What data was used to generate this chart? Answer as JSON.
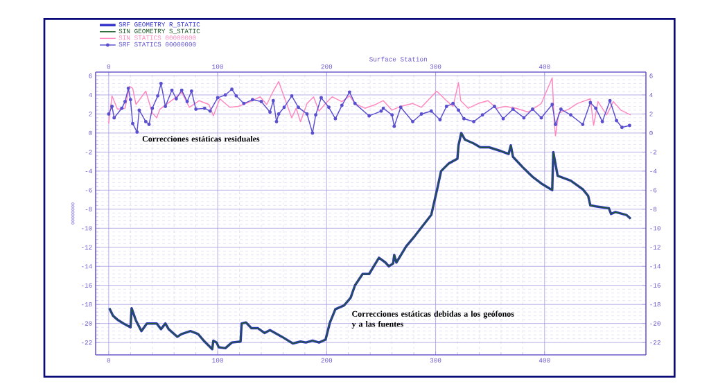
{
  "chart_data": {
    "type": "line",
    "x2label": "Surface Station",
    "ylabel": "00000000",
    "xlim": [
      -12,
      493
    ],
    "xticks": [
      0,
      100,
      200,
      300,
      400
    ],
    "x2lim": [
      -12,
      493
    ],
    "x2ticks": [
      0,
      100,
      200,
      300,
      400
    ],
    "ylim": [
      -23.3,
      6.4
    ],
    "yticks": [
      -22,
      -20,
      -18,
      -16,
      -14,
      -12,
      -10,
      -8,
      -6,
      -4,
      -2,
      0,
      2,
      4,
      6
    ],
    "y2lim": [
      -23.3,
      6.4
    ],
    "y2ticks": [
      -22,
      -20,
      -18,
      -16,
      -14,
      -12,
      -10,
      -8,
      -6,
      -4,
      -2,
      0,
      2,
      4,
      6
    ],
    "grid": true,
    "legend": "top left",
    "annotations": [
      "Correcciones estáticas residuales",
      "Correcciones estáticas debidas a los geófonos y a las fuentes"
    ],
    "series": [
      {
        "name": "SRF GEOMETRY R_STATIC",
        "color": "#3333cc",
        "marker": "none",
        "x": [
          0.6,
          4,
          8,
          13.6,
          20,
          21,
          25,
          30,
          35,
          44,
          48,
          52,
          55,
          63,
          67,
          75,
          82,
          88,
          95,
          96,
          99,
          101,
          107,
          113,
          121,
          122,
          126,
          131,
          137,
          143,
          148,
          159,
          169,
          176,
          181,
          187,
          193,
          199,
          203,
          208,
          216,
          222,
          226,
          233,
          239,
          248,
          254,
          257,
          261,
          262,
          264,
          273,
          281,
          296,
          302,
          305,
          312,
          320,
          321,
          323.5,
          327,
          335,
          341,
          349,
          360,
          367,
          369,
          371,
          380,
          389,
          397,
          407,
          408,
          412,
          424,
          435,
          440,
          442,
          447,
          459,
          461,
          465,
          475,
          479
        ],
        "values": [
          -18.4,
          -19.2,
          -19.6,
          -20,
          -20.4,
          -18.4,
          -19.7,
          -20.8,
          -20,
          -20,
          -20.6,
          -20,
          -20.6,
          -21.4,
          -21.1,
          -20.8,
          -21.1,
          -21.9,
          -22.7,
          -21.8,
          -22,
          -22.5,
          -22.6,
          -22,
          -21.9,
          -20,
          -19.9,
          -20.5,
          -20.5,
          -21,
          -20.7,
          -21.4,
          -22.1,
          -21.9,
          -22,
          -21.8,
          -22,
          -21.7,
          -19.9,
          -18.5,
          -18.1,
          -17.3,
          -16,
          -14.8,
          -14.8,
          -13.1,
          -13.6,
          -14,
          -13.7,
          -12.8,
          -13.6,
          -11.9,
          -10.8,
          -8.6,
          -5.6,
          -4,
          -3.2,
          -2.7,
          -1.3,
          0,
          -0.7,
          -1.1,
          -1.5,
          -1.5,
          -1.9,
          -2.2,
          -1.3,
          -2.5,
          -3.6,
          -4.6,
          -5.3,
          -6,
          -2,
          -4.5,
          -5,
          -5.9,
          -6.6,
          -7.6,
          -7.7,
          -7.9,
          -8.5,
          -8.3,
          -8.6,
          -9
        ]
      },
      {
        "name": "SIN GEOMETRY S_STATIC",
        "color": "#1f5c2a",
        "marker": "none",
        "x": [
          0.6,
          4,
          8,
          13.6,
          20,
          21,
          25,
          30,
          35,
          44,
          48,
          52,
          55,
          63,
          67,
          75,
          82,
          88,
          95,
          96,
          99,
          101,
          107,
          113,
          121,
          122,
          126,
          131,
          137,
          143,
          148,
          159,
          169,
          176,
          181,
          187,
          193,
          199,
          203,
          208,
          216,
          222,
          226,
          233,
          239,
          248,
          254,
          257,
          261,
          262,
          264,
          273,
          281,
          296,
          302,
          305,
          312,
          320,
          321,
          323.5,
          327,
          335,
          341,
          349,
          360,
          367,
          369,
          371,
          380,
          389,
          397,
          407,
          408,
          412,
          424,
          435,
          440,
          442,
          447,
          459,
          461,
          465,
          475,
          479
        ],
        "values": [
          -18.4,
          -19.2,
          -19.6,
          -20,
          -20.4,
          -18.4,
          -19.7,
          -20.8,
          -20,
          -20,
          -20.6,
          -20,
          -20.6,
          -21.4,
          -21.1,
          -20.8,
          -21.1,
          -21.9,
          -22.7,
          -21.8,
          -22,
          -22.5,
          -22.6,
          -22,
          -21.9,
          -20,
          -19.9,
          -20.5,
          -20.5,
          -21,
          -20.7,
          -21.4,
          -22.1,
          -21.9,
          -22,
          -21.8,
          -22,
          -21.7,
          -19.9,
          -18.5,
          -18.1,
          -17.3,
          -16,
          -14.8,
          -14.8,
          -13.1,
          -13.6,
          -14,
          -13.7,
          -12.8,
          -13.6,
          -11.9,
          -10.8,
          -8.6,
          -5.6,
          -4,
          -3.2,
          -2.7,
          -1.3,
          0,
          -0.7,
          -1.1,
          -1.5,
          -1.5,
          -1.9,
          -2.2,
          -1.3,
          -2.5,
          -3.6,
          -4.6,
          -5.3,
          -6,
          -2,
          -4.5,
          -5,
          -5.9,
          -6.6,
          -7.6,
          -7.7,
          -7.9,
          -8.5,
          -8.3,
          -8.6,
          -9
        ]
      },
      {
        "name": "SIN STATICS 00000000",
        "color": "#ff88c0",
        "marker": "none",
        "x": [
          0,
          3,
          8,
          15,
          19,
          22,
          25,
          34,
          40,
          44,
          47,
          54,
          61,
          67,
          74,
          83,
          92,
          96,
          102,
          111,
          119,
          130,
          139,
          145,
          151,
          156,
          161,
          168,
          172,
          176,
          182,
          188,
          193,
          199,
          205,
          214,
          221,
          226,
          235,
          245,
          252,
          260,
          268,
          279,
          287,
          296,
          301,
          309,
          316,
          321,
          323,
          330,
          339,
          348,
          356,
          364,
          374,
          385,
          397,
          407,
          409,
          410,
          413,
          422,
          430,
          442,
          445,
          449,
          457,
          463,
          470,
          479
        ],
        "values": [
          1,
          3.9,
          2.5,
          2.6,
          4.9,
          4.7,
          3,
          4.4,
          2.1,
          1.6,
          2.5,
          3.1,
          3.7,
          4.3,
          2.7,
          3.4,
          3,
          1.8,
          3.6,
          2.7,
          2.8,
          3.3,
          3.8,
          3,
          4.4,
          5.4,
          3.8,
          1.6,
          2.6,
          1.2,
          3.1,
          3.8,
          2.3,
          3.1,
          3.8,
          3.3,
          3.9,
          3.1,
          2.6,
          3,
          3.4,
          2.4,
          2.8,
          3.1,
          2.7,
          3.8,
          4.4,
          3.5,
          2.8,
          5.3,
          3.4,
          2.6,
          3.1,
          3.4,
          2.6,
          2.8,
          2.6,
          2.2,
          3.1,
          5.8,
          0.9,
          -0.3,
          2.1,
          2.5,
          3.1,
          3.6,
          0.8,
          3.3,
          1.9,
          3.3,
          2.4,
          1.9
        ]
      },
      {
        "name": "SRF STATICS 00000000",
        "color": "#5a4fcf",
        "marker": "circle",
        "x": [
          0,
          3,
          5,
          12,
          15,
          18,
          20,
          22,
          26,
          28,
          34,
          37,
          40,
          45,
          48,
          52,
          58,
          62,
          67,
          72,
          76,
          80,
          88,
          93,
          100,
          107,
          113,
          117,
          124,
          132,
          140,
          148,
          151,
          154,
          156,
          161,
          168,
          174,
          182,
          187,
          190,
          195,
          202,
          208,
          214,
          221,
          226,
          239,
          250,
          252,
          260,
          262,
          268,
          279,
          287,
          296,
          304,
          310,
          316,
          321,
          326,
          335,
          343,
          354,
          362,
          371,
          381,
          389,
          397,
          407,
          410,
          415,
          424,
          435,
          442,
          447,
          453,
          460,
          466,
          471,
          478
        ],
        "values": [
          2,
          2.8,
          1.6,
          2.6,
          3.3,
          4.7,
          3.5,
          1,
          0.1,
          2.4,
          1.2,
          0.9,
          2.6,
          3.9,
          5.2,
          2.8,
          4.5,
          3.6,
          4.5,
          3.3,
          4.4,
          2.5,
          2.6,
          2.3,
          3.7,
          4,
          4.6,
          3.9,
          3.1,
          3.5,
          3.3,
          2.2,
          3.4,
          1.2,
          2,
          2.7,
          3.9,
          2.7,
          2,
          0,
          1.9,
          3.7,
          2.7,
          1.5,
          2.9,
          4.3,
          3.1,
          1.8,
          2.3,
          2.6,
          1.9,
          0.7,
          2.7,
          1.2,
          2,
          2.3,
          1.4,
          2.8,
          3.1,
          2.4,
          1.5,
          1.2,
          1.9,
          2.8,
          1.5,
          2.5,
          1.6,
          2.5,
          1.6,
          3,
          0.9,
          2.5,
          1.9,
          0.9,
          3.2,
          2.6,
          1.2,
          3.4,
          1.3,
          0.6,
          0.8
        ]
      }
    ]
  }
}
